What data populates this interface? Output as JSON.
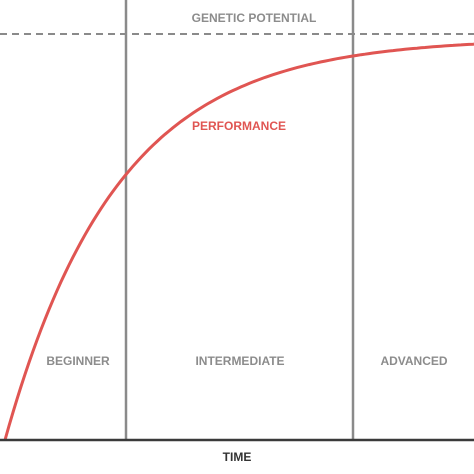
{
  "title": "GENETIC POTENTIAL",
  "curve_label": "PERFORMANCE",
  "stages": [
    "BEGINNER",
    "INTERMEDIATE",
    "ADVANCED"
  ],
  "x_axis_label": "TIME"
}
